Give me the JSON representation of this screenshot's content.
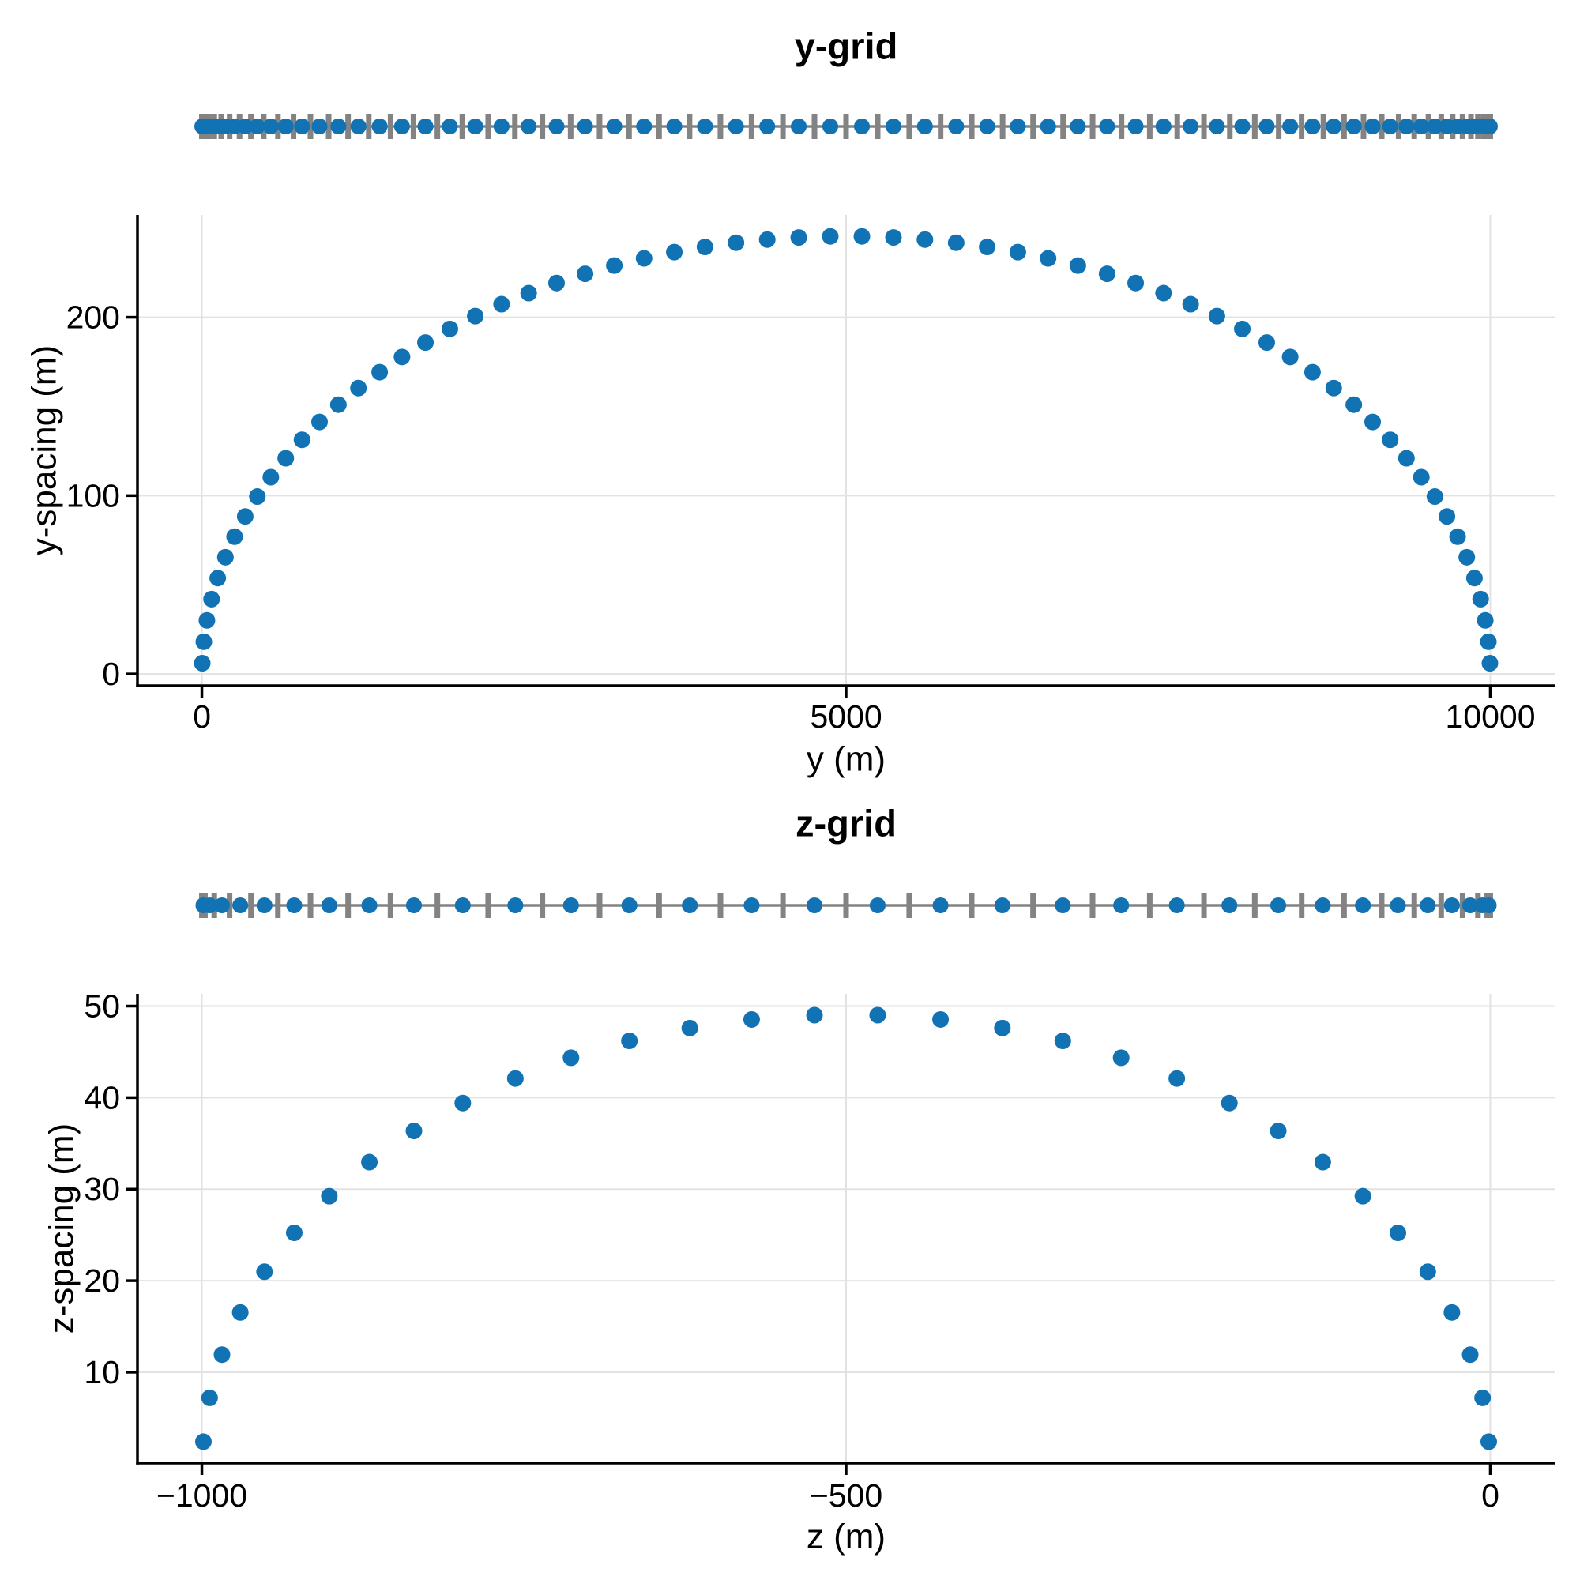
{
  "chart_data": [
    {
      "type": "scatter",
      "title": "y-grid",
      "xlabel": "y (m)",
      "ylabel": "y-spacing (m)",
      "xlim": [
        -500,
        10500
      ],
      "ylim": [
        -6.6,
        257.4
      ],
      "xticks": [
        0,
        5000,
        10000
      ],
      "xtick_labels": [
        "0",
        "5000",
        "10000"
      ],
      "yticks": [
        0,
        100,
        200
      ],
      "ytick_labels": [
        "0",
        "100",
        "200"
      ],
      "grid": true,
      "legend": "none",
      "description": "Cell spacing of a cosine-stretched grid with 64 cells spanning y = 0 to 10000 m; markers at cell centers, rug above shows cell edges (gray ticks) and cell centers (blue dots).",
      "x": [
        3.0,
        15.1,
        39.1,
        75.1,
        123.0,
        182.6,
        253.8,
        336.4,
        430.3,
        535.2,
        650.9,
        777.0,
        913.3,
        1059.5,
        1215.1,
        1379.9,
        1553.3,
        1735.1,
        1924.8,
        2121.8,
        2325.8,
        2536.2,
        2752.6,
        2974.4,
        3201.1,
        3432.1,
        3666.8,
        3904.8,
        4145.5,
        4388.1,
        4632.3,
        4877.3,
        5122.7,
        5367.7,
        5611.9,
        5854.5,
        6095.2,
        6333.2,
        6567.9,
        6798.9,
        7025.6,
        7247.4,
        7463.8,
        7674.2,
        7878.2,
        8075.2,
        8264.9,
        8446.7,
        8620.1,
        8784.9,
        8940.5,
        9086.7,
        9223.0,
        9349.1,
        9464.8,
        9569.7,
        9663.6,
        9746.2,
        9817.4,
        9877.0,
        9924.9,
        9960.9,
        9985.0,
        9997.0
      ],
      "y": [
        6.02,
        18.05,
        30.04,
        41.96,
        53.77,
        65.45,
        76.98,
        88.32,
        99.46,
        110.34,
        120.96,
        131.29,
        141.31,
        150.99,
        160.3,
        169.22,
        177.74,
        185.82,
        193.46,
        200.65,
        207.34,
        213.53,
        219.21,
        224.36,
        228.97,
        233.02,
        236.52,
        239.45,
        241.8,
        243.56,
        244.74,
        245.34,
        245.34,
        244.74,
        243.56,
        241.8,
        239.45,
        236.52,
        233.02,
        228.97,
        224.36,
        219.21,
        213.53,
        207.34,
        200.65,
        193.46,
        185.82,
        177.74,
        169.22,
        160.3,
        150.99,
        141.31,
        131.29,
        120.96,
        110.34,
        99.46,
        88.32,
        76.98,
        65.45,
        53.77,
        41.96,
        30.04,
        18.05,
        6.02
      ],
      "rug_edges": [
        0.0,
        6.0,
        24.1,
        54.1,
        96.1,
        149.8,
        215.3,
        292.3,
        380.6,
        480.1,
        590.4,
        711.3,
        842.7,
        984.0,
        1134.9,
        1295.2,
        1464.5,
        1642.2,
        1828.0,
        2021.5,
        2222.1,
        2429.5,
        2643.0,
        2862.2,
        3086.6,
        3315.6,
        3548.6,
        3785.1,
        4024.5,
        4266.3,
        4509.9,
        4754.7,
        5000.0,
        5245.3,
        5490.1,
        5733.7,
        5975.5,
        6214.9,
        6451.4,
        6684.4,
        6913.4,
        7137.8,
        7357.0,
        7570.5,
        7777.9,
        7978.5,
        8172.0,
        8357.8,
        8535.5,
        8704.8,
        8865.0,
        9016.0,
        9157.4,
        9288.7,
        9409.6,
        9519.9,
        9619.4,
        9707.7,
        9784.7,
        9850.2,
        9903.9,
        9945.9,
        9975.9,
        9994.0,
        10000.0
      ]
    },
    {
      "type": "scatter",
      "title": "z-grid",
      "xlabel": "z (m)",
      "ylabel": "z-spacing (m)",
      "xlim": [
        -1050,
        50
      ],
      "ylim": [
        0.07,
        51.34
      ],
      "xticks": [
        -1000,
        -500,
        0
      ],
      "xtick_labels": [
        "−1000",
        "−500",
        "0"
      ],
      "yticks": [
        10,
        20,
        30,
        40,
        50
      ],
      "ytick_labels": [
        "10",
        "20",
        "30",
        "40",
        "50"
      ],
      "grid": true,
      "legend": "none",
      "description": "Cell spacing of a cosine-stretched grid with 32 cells spanning z = -1000 to 0 m; markers at cell centers, rug above shows cell edges (gray ticks) and cell centers (blue dots).",
      "x": [
        -998.8,
        -994.0,
        -984.4,
        -970.2,
        -951.4,
        -928.3,
        -901.1,
        -870.0,
        -835.4,
        -797.5,
        -756.7,
        -713.5,
        -668.2,
        -621.3,
        -573.3,
        -524.5,
        -475.5,
        -426.7,
        -378.7,
        -331.8,
        -286.5,
        -243.3,
        -202.5,
        -164.6,
        -130.0,
        -98.9,
        -71.7,
        -48.5,
        -29.8,
        -15.6,
        -6.0,
        -1.2
      ],
      "y": [
        2.41,
        7.2,
        11.92,
        16.53,
        20.98,
        25.23,
        29.23,
        32.95,
        36.36,
        39.41,
        42.09,
        44.36,
        46.2,
        47.6,
        48.54,
        49.01,
        49.01,
        48.54,
        47.6,
        46.2,
        44.36,
        42.09,
        39.41,
        36.36,
        32.95,
        29.23,
        25.23,
        20.98,
        16.53,
        11.92,
        7.2,
        2.41
      ],
      "rug_edges": [
        -1000.0,
        -997.6,
        -990.4,
        -978.5,
        -961.9,
        -941.0,
        -915.7,
        -886.5,
        -853.6,
        -817.2,
        -777.8,
        -735.7,
        -691.3,
        -645.1,
        -597.5,
        -549.0,
        -500.0,
        -451.0,
        -402.5,
        -354.9,
        -308.7,
        -264.3,
        -222.2,
        -182.8,
        -146.4,
        -113.5,
        -84.3,
        -59.0,
        -38.1,
        -21.5,
        -9.6,
        -2.4,
        0.0
      ]
    }
  ],
  "colors": {
    "marker": "#1172b4",
    "rug_gray": "#838383",
    "gridline": "#e2e2e2",
    "spine": "#000000",
    "text": "#000000",
    "background": "#ffffff"
  }
}
